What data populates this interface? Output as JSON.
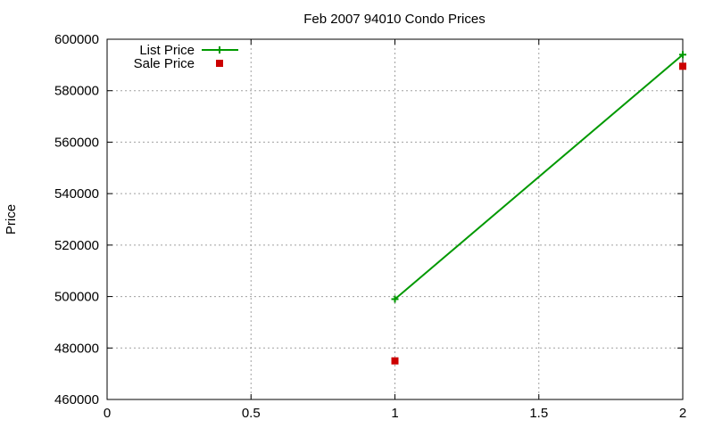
{
  "chart_data": {
    "type": "line",
    "title": "Feb 2007 94010 Condo Prices",
    "xlabel": "",
    "ylabel": "Price",
    "xlim": [
      0,
      2
    ],
    "ylim": [
      460000,
      600000
    ],
    "xticks": [
      "0",
      "0.5",
      "1",
      "1.5",
      "2"
    ],
    "yticks": [
      "460000",
      "480000",
      "500000",
      "520000",
      "540000",
      "560000",
      "580000",
      "600000"
    ],
    "grid": true,
    "legend_position": "top-left",
    "series": [
      {
        "name": "List Price",
        "style": "line-with-plus-markers",
        "color": "#009900",
        "points": [
          {
            "x": 1,
            "y": 499000
          },
          {
            "x": 2,
            "y": 594000
          }
        ]
      },
      {
        "name": "Sale Price",
        "style": "square-markers",
        "color": "#cc0000",
        "points": [
          {
            "x": 1,
            "y": 475000
          },
          {
            "x": 2,
            "y": 589500
          }
        ]
      }
    ]
  }
}
